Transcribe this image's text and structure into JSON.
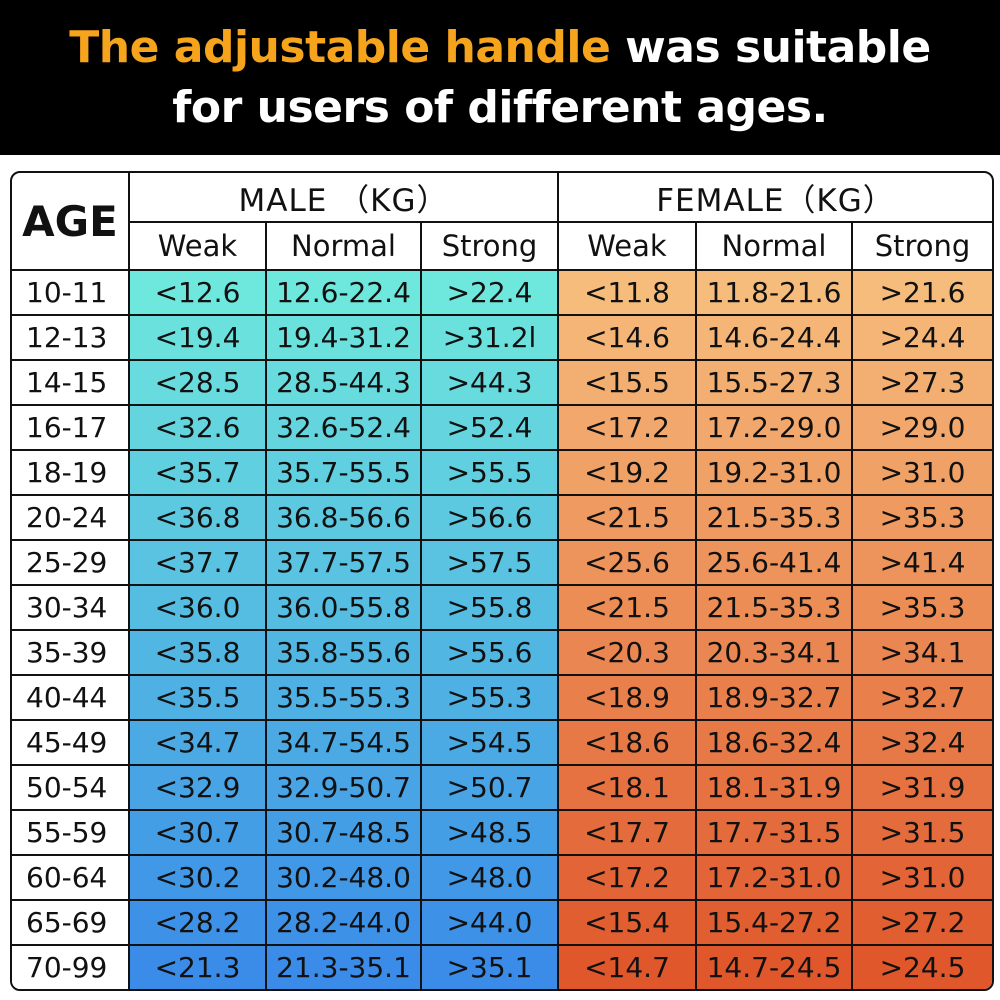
{
  "header": {
    "title_highlight": "The adjustable handle",
    "title_rest": " was suitable",
    "title_line2": "for users of different ages."
  },
  "colors": {
    "highlight": "#f7a41d",
    "male_top": "#6ee7dc",
    "male_bottom": "#3a8ce8",
    "female_top": "#f6bc7c",
    "female_bottom": "#e0572b"
  },
  "table": {
    "age_header": "AGE",
    "male_header": "MALE （KG）",
    "female_header": "FEMALE（KG）",
    "sub_headers": [
      "Weak",
      "Normal",
      "Strong",
      "Weak",
      "Normal",
      "Strong"
    ],
    "rows": [
      {
        "age": "10-11",
        "male": [
          "<12.6",
          "12.6-22.4",
          ">22.4"
        ],
        "female": [
          "<11.8",
          "11.8-21.6",
          ">21.6"
        ]
      },
      {
        "age": "12-13",
        "male": [
          "<19.4",
          "19.4-31.2",
          ">31.2l"
        ],
        "female": [
          "<14.6",
          "14.6-24.4",
          ">24.4"
        ]
      },
      {
        "age": "14-15",
        "male": [
          "<28.5",
          "28.5-44.3",
          ">44.3"
        ],
        "female": [
          "<15.5",
          "15.5-27.3",
          ">27.3"
        ]
      },
      {
        "age": "16-17",
        "male": [
          "<32.6",
          "32.6-52.4",
          ">52.4"
        ],
        "female": [
          "<17.2",
          "17.2-29.0",
          ">29.0"
        ]
      },
      {
        "age": "18-19",
        "male": [
          "<35.7",
          "35.7-55.5",
          ">55.5"
        ],
        "female": [
          "<19.2",
          "19.2-31.0",
          ">31.0"
        ]
      },
      {
        "age": "20-24",
        "male": [
          "<36.8",
          "36.8-56.6",
          ">56.6"
        ],
        "female": [
          "<21.5",
          "21.5-35.3",
          ">35.3"
        ]
      },
      {
        "age": "25-29",
        "male": [
          "<37.7",
          "37.7-57.5",
          ">57.5"
        ],
        "female": [
          "<25.6",
          "25.6-41.4",
          ">41.4"
        ]
      },
      {
        "age": "30-34",
        "male": [
          "<36.0",
          "36.0-55.8",
          ">55.8"
        ],
        "female": [
          "<21.5",
          "21.5-35.3",
          ">35.3"
        ]
      },
      {
        "age": "35-39",
        "male": [
          "<35.8",
          "35.8-55.6",
          ">55.6"
        ],
        "female": [
          "<20.3",
          "20.3-34.1",
          ">34.1"
        ]
      },
      {
        "age": "40-44",
        "male": [
          "<35.5",
          "35.5-55.3",
          ">55.3"
        ],
        "female": [
          "<18.9",
          "18.9-32.7",
          ">32.7"
        ]
      },
      {
        "age": "45-49",
        "male": [
          "<34.7",
          "34.7-54.5",
          ">54.5"
        ],
        "female": [
          "<18.6",
          "18.6-32.4",
          ">32.4"
        ]
      },
      {
        "age": "50-54",
        "male": [
          "<32.9",
          "32.9-50.7",
          ">50.7"
        ],
        "female": [
          "<18.1",
          "18.1-31.9",
          ">31.9"
        ]
      },
      {
        "age": "55-59",
        "male": [
          "<30.7",
          "30.7-48.5",
          ">48.5"
        ],
        "female": [
          "<17.7",
          "17.7-31.5",
          ">31.5"
        ]
      },
      {
        "age": "60-64",
        "male": [
          "<30.2",
          "30.2-48.0",
          ">48.0"
        ],
        "female": [
          "<17.2",
          "17.2-31.0",
          ">31.0"
        ]
      },
      {
        "age": "65-69",
        "male": [
          "<28.2",
          "28.2-44.0",
          ">44.0"
        ],
        "female": [
          "<15.4",
          "15.4-27.2",
          ">27.2"
        ]
      },
      {
        "age": "70-99",
        "male": [
          "<21.3",
          "21.3-35.1",
          ">35.1"
        ],
        "female": [
          "<14.7",
          "14.7-24.5",
          ">24.5"
        ]
      }
    ]
  }
}
